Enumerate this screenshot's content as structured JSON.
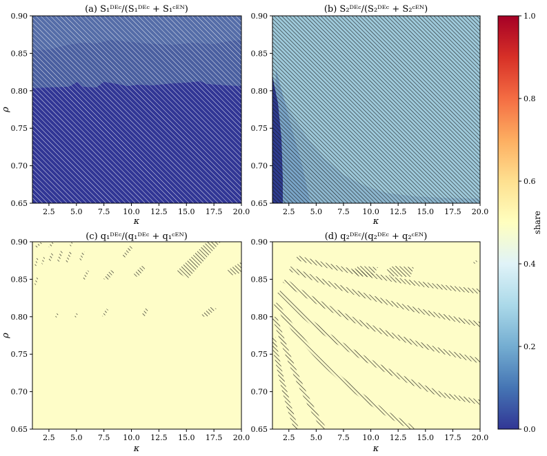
{
  "chart_data": [
    {
      "panel": "a",
      "type": "heatmap",
      "title": "(a) S₁ᴰᴱᶜ/(S₁ᴰᴱᶜ + S₁ᶜᴱᴺ)",
      "xlabel": "κ",
      "ylabel": "ρ",
      "xlim": [
        1,
        20
      ],
      "ylim": [
        0.65,
        0.9
      ],
      "xticks": [
        "2.5",
        "5.0",
        "7.5",
        "10.0",
        "12.5",
        "15.0",
        "17.5",
        "20.0"
      ],
      "yticks": [
        "0.65",
        "0.70",
        "0.75",
        "0.80",
        "0.85",
        "0.90"
      ],
      "regions": [
        {
          "y_range": [
            0.65,
            0.802
          ],
          "share": 0.0,
          "hatched": true
        },
        {
          "y_range": [
            0.802,
            0.855
          ],
          "share": 0.15,
          "hatched": true
        },
        {
          "y_range": [
            0.855,
            0.9
          ],
          "share": 0.2,
          "hatched": true
        }
      ]
    },
    {
      "panel": "b",
      "type": "heatmap",
      "title": "(b) S₂ᴰᴱᶜ/(S₂ᴰᴱᶜ + S₂ᶜᴱᴺ)",
      "xlabel": "κ",
      "ylabel": "",
      "xlim": [
        1,
        20
      ],
      "ylim": [
        0.65,
        0.9
      ],
      "xticks": [
        "2.5",
        "5.0",
        "7.5",
        "10.0",
        "12.5",
        "15.0",
        "17.5",
        "20.0"
      ],
      "yticks": [
        "0.65",
        "0.70",
        "0.75",
        "0.80",
        "0.85",
        "0.90"
      ],
      "regions": [
        {
          "description_share": "background",
          "share": 0.3,
          "hatched": true
        },
        {
          "x_range": [
            1.0,
            1.6
          ],
          "share": 0.02,
          "hatched": true
        },
        {
          "x_range": [
            1.6,
            3.5
          ],
          "share": 0.15,
          "hatched": true
        }
      ]
    },
    {
      "panel": "c",
      "type": "heatmap",
      "title": "(c) q₁ᴰᴱᶜ/(q₁ᴰᴱᶜ + q₁ᶜᴱᴺ)",
      "xlabel": "κ",
      "ylabel": "ρ",
      "xlim": [
        1,
        20
      ],
      "ylim": [
        0.65,
        0.9
      ],
      "xticks": [
        "2.5",
        "5.0",
        "7.5",
        "10.0",
        "12.5",
        "15.0",
        "17.5",
        "20.0"
      ],
      "yticks": [
        "0.65",
        "0.70",
        "0.75",
        "0.80",
        "0.85",
        "0.90"
      ],
      "background_share": 0.5
    },
    {
      "panel": "d",
      "type": "heatmap",
      "title": "(d) q₂ᴰᴱᶜ/(q₂ᴰᴱᶜ + q₂ᶜᴱᴺ)",
      "xlabel": "κ",
      "ylabel": "",
      "xlim": [
        1,
        20
      ],
      "ylim": [
        0.65,
        0.9
      ],
      "xticks": [
        "2.5",
        "5.0",
        "7.5",
        "10.0",
        "12.5",
        "15.0",
        "17.5",
        "20.0"
      ],
      "yticks": [
        "0.65",
        "0.70",
        "0.75",
        "0.80",
        "0.85",
        "0.90"
      ],
      "background_share": 0.5
    }
  ],
  "colorbar": {
    "label": "share",
    "range": [
      0.0,
      1.0
    ],
    "ticks": [
      "0.0",
      "0.2",
      "0.4",
      "0.6",
      "0.8",
      "1.0"
    ],
    "colormap": "RdYlBu_r"
  },
  "colors": {
    "deep_blue": "#313695",
    "mid_blue": "#4575b4",
    "light_blue": "#abd9e9",
    "pale_yellow": "#ffffbf",
    "cream": "#fefdc8",
    "orange": "#f46d43",
    "dark_red": "#a50026"
  }
}
